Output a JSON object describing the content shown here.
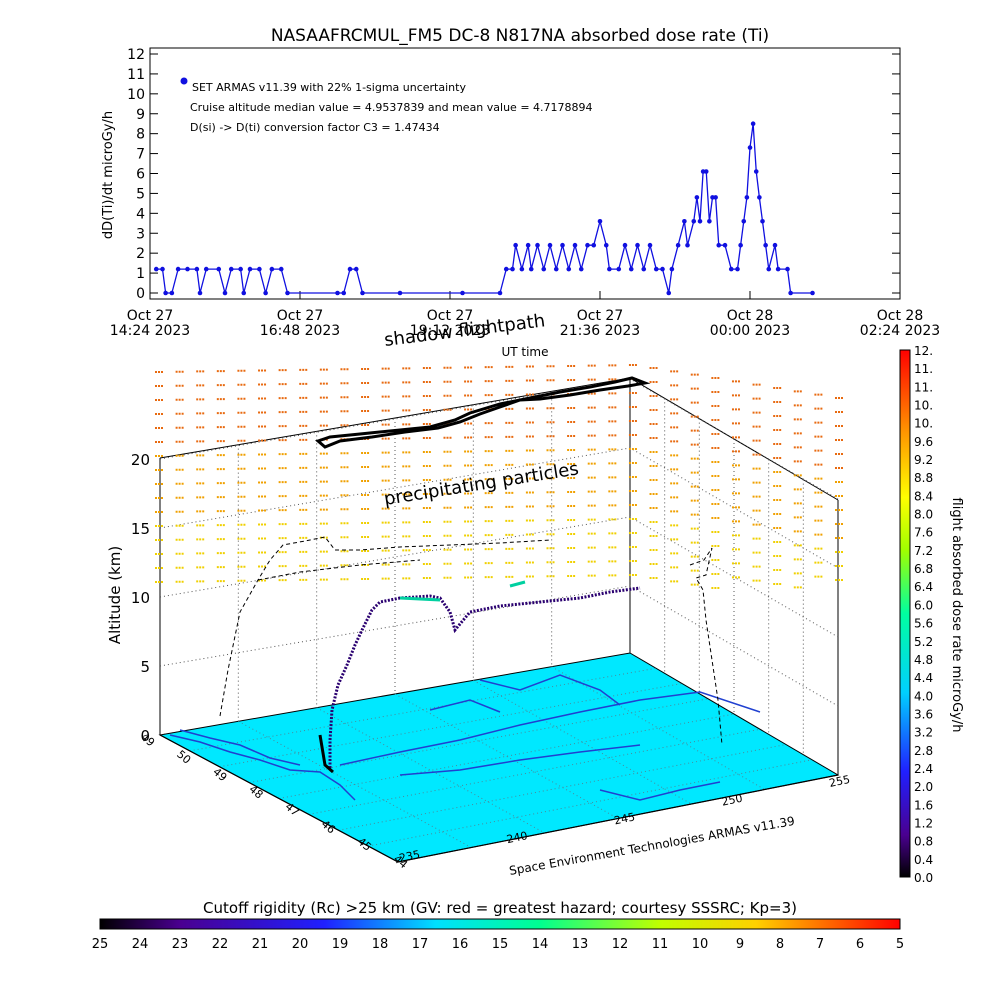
{
  "chart_data": [
    {
      "type": "line",
      "title": "NASAAFRCMUL_FM5 DC-8   N817NA absorbed dose rate (Ti)",
      "ylabel": "dD(Ti)/dt microGy/h",
      "xlabel": "UT time",
      "ylim": [
        0,
        12
      ],
      "yticks": [
        "0",
        "1",
        "2",
        "3",
        "4",
        "5",
        "6",
        "7",
        "8",
        "9",
        "10",
        "11",
        "12"
      ],
      "xlim_hours": [
        0,
        12
      ],
      "xticks": [
        {
          "line1": "Oct 27",
          "line2": "14:24 2023",
          "h": 0
        },
        {
          "line1": "Oct 27",
          "line2": "16:48 2023",
          "h": 2.4
        },
        {
          "line1": "Oct 27",
          "line2": "19:12 2023",
          "h": 4.8
        },
        {
          "line1": "Oct 27",
          "line2": "21:36 2023",
          "h": 7.2
        },
        {
          "line1": "Oct 28",
          "line2": "00:00 2023",
          "h": 9.6
        },
        {
          "line1": "Oct 28",
          "line2": "02:24 2023",
          "h": 12
        }
      ],
      "legend": [
        "SET ARMAS v11.39 with 22% 1-sigma uncertainty",
        "Cruise altitude median value = 4.9537839 and mean value = 4.7178894",
        "D(si) -> D(ti) conversion factor C3 = 1.47434"
      ],
      "series": [
        {
          "color": "#1010e0",
          "points": [
            [
              0.1,
              1.2
            ],
            [
              0.2,
              1.2
            ],
            [
              0.25,
              0
            ],
            [
              0.35,
              0
            ],
            [
              0.45,
              1.2
            ],
            [
              0.6,
              1.2
            ],
            [
              0.75,
              1.2
            ],
            [
              0.8,
              0
            ],
            [
              0.9,
              1.2
            ],
            [
              1.1,
              1.2
            ],
            [
              1.2,
              0
            ],
            [
              1.3,
              1.2
            ],
            [
              1.45,
              1.2
            ],
            [
              1.5,
              0
            ],
            [
              1.6,
              1.2
            ],
            [
              1.75,
              1.2
            ],
            [
              1.85,
              0
            ],
            [
              1.95,
              1.2
            ],
            [
              2.1,
              1.2
            ],
            [
              2.2,
              0
            ],
            [
              3.0,
              0
            ],
            [
              3.1,
              0
            ],
            [
              3.2,
              1.2
            ],
            [
              3.3,
              1.2
            ],
            [
              3.4,
              0
            ],
            [
              4.0,
              0
            ],
            [
              5.0,
              0
            ],
            [
              5.6,
              0
            ],
            [
              5.7,
              1.2
            ],
            [
              5.8,
              1.2
            ],
            [
              5.85,
              2.4
            ],
            [
              5.95,
              1.2
            ],
            [
              6.05,
              2.4
            ],
            [
              6.1,
              1.2
            ],
            [
              6.2,
              2.4
            ],
            [
              6.3,
              1.2
            ],
            [
              6.4,
              2.4
            ],
            [
              6.5,
              1.2
            ],
            [
              6.6,
              2.4
            ],
            [
              6.7,
              1.2
            ],
            [
              6.8,
              2.4
            ],
            [
              6.9,
              1.2
            ],
            [
              7.0,
              2.4
            ],
            [
              7.1,
              2.4
            ],
            [
              7.2,
              3.6
            ],
            [
              7.3,
              2.4
            ],
            [
              7.35,
              1.2
            ],
            [
              7.5,
              1.2
            ],
            [
              7.6,
              2.4
            ],
            [
              7.7,
              1.2
            ],
            [
              7.8,
              2.4
            ],
            [
              7.9,
              1.2
            ],
            [
              8.0,
              2.4
            ],
            [
              8.1,
              1.2
            ],
            [
              8.2,
              1.2
            ],
            [
              8.3,
              0
            ],
            [
              8.35,
              1.2
            ],
            [
              8.45,
              2.4
            ],
            [
              8.55,
              3.6
            ],
            [
              8.6,
              2.4
            ],
            [
              8.7,
              3.6
            ],
            [
              8.75,
              4.8
            ],
            [
              8.8,
              3.6
            ],
            [
              8.85,
              6.1
            ],
            [
              8.9,
              6.1
            ],
            [
              8.95,
              3.6
            ],
            [
              9.0,
              4.8
            ],
            [
              9.05,
              4.8
            ],
            [
              9.1,
              2.4
            ],
            [
              9.2,
              2.4
            ],
            [
              9.3,
              1.2
            ],
            [
              9.4,
              1.2
            ],
            [
              9.45,
              2.4
            ],
            [
              9.5,
              3.6
            ],
            [
              9.55,
              4.8
            ],
            [
              9.6,
              7.3
            ],
            [
              9.65,
              8.5
            ],
            [
              9.7,
              6.1
            ],
            [
              9.75,
              4.8
            ],
            [
              9.8,
              3.6
            ],
            [
              9.85,
              2.4
            ],
            [
              9.9,
              1.2
            ],
            [
              10.0,
              2.4
            ],
            [
              10.05,
              1.2
            ],
            [
              10.2,
              1.2
            ],
            [
              10.25,
              0
            ],
            [
              10.6,
              0
            ]
          ]
        }
      ]
    },
    {
      "type": "scatter",
      "title": "shadow flightpath",
      "annotation": "precipitating particles",
      "zlabel": "Altitude (km)",
      "zticks": [
        "0",
        "5",
        "10",
        "15",
        "20"
      ],
      "lat_ticks": [
        "49",
        "50",
        "49",
        "48",
        "47",
        "46",
        "45",
        "44"
      ],
      "lon_ticks": [
        "235",
        "240",
        "245",
        "250",
        "255"
      ],
      "credit": "Space Environment Technologies ARMAS v11.39",
      "colorbar_label": "flight absorbed dose rate microGy/h",
      "colorbar_ticks": [
        "0.0",
        "0.4",
        "0.8",
        "1.2",
        "1.6",
        "2.0",
        "2.4",
        "2.8",
        "3.2",
        "3.6",
        "4.0",
        "4.4",
        "4.8",
        "5.2",
        "5.6",
        "6.0",
        "6.4",
        "6.8",
        "7.2",
        "7.6",
        "8.0",
        "8.4",
        "8.8",
        "9.2",
        "9.6",
        "10.",
        "10.",
        "11.",
        "11.",
        "12."
      ],
      "cutoff_title": "Cutoff rigidity (Rc) >25 km (GV: red = greatest hazard; courtesy SSSRC; Kp=3)",
      "cutoff_ticks": [
        "25",
        "24",
        "23",
        "22",
        "21",
        "20",
        "19",
        "18",
        "17",
        "16",
        "15",
        "14",
        "13",
        "12",
        "11",
        "10",
        "9",
        "8",
        "7",
        "6",
        "5"
      ]
    }
  ],
  "colors": {
    "surface": "#00e8ff",
    "flight": "#101020",
    "dose_marks": "#f0a000"
  }
}
